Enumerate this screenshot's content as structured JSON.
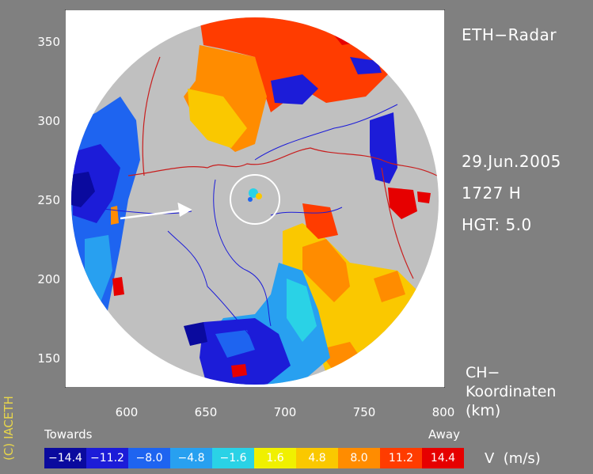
{
  "title": "ETH−Radar",
  "date": "29.Jun.2005",
  "time": "1727 H",
  "height": "HGT: 5.0",
  "coord_label": [
    "CH−",
    "Koordinaten",
    "(km)"
  ],
  "copyright": "(C) IACETH",
  "axes": {
    "x_ticks": [
      "600",
      "650",
      "700",
      "750",
      "800"
    ],
    "y_ticks": [
      "350",
      "300",
      "250",
      "200",
      "150"
    ]
  },
  "legend": {
    "left_label": "Towards",
    "right_label": "Away",
    "unit": "V  (m/s)",
    "items": [
      {
        "label": "−14.4",
        "color": "#0a0a9e"
      },
      {
        "label": "−11.2",
        "color": "#1c1cd8"
      },
      {
        "label": "−8.0",
        "color": "#1e64f0"
      },
      {
        "label": "−4.8",
        "color": "#28a0f0"
      },
      {
        "label": "−1.6",
        "color": "#2ad2e6"
      },
      {
        "label": "1.6",
        "color": "#f0f000"
      },
      {
        "label": "4.8",
        "color": "#fac800"
      },
      {
        "label": "8.0",
        "color": "#ff8c00"
      },
      {
        "label": "11.2",
        "color": "#ff3c00"
      },
      {
        "label": "14.4",
        "color": "#e60000"
      }
    ]
  }
}
